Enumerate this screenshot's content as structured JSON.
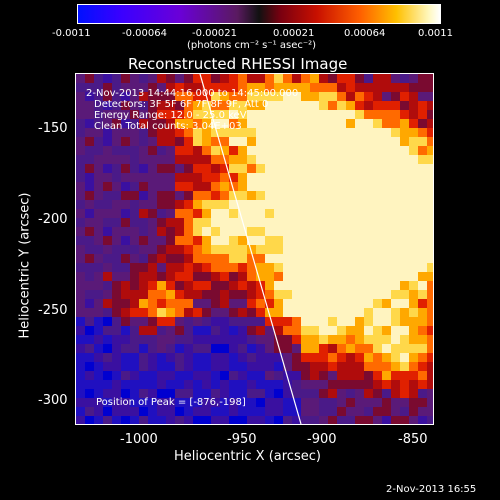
{
  "colorbar": {
    "ticks": [
      "-0.0011",
      "-0.00064",
      "-0.00021",
      "0.00021",
      "0.00064",
      "0.0011"
    ],
    "units": "(photons cm⁻² s⁻¹ asec⁻²)"
  },
  "plot": {
    "title": "Reconstructed RHESSI Image",
    "info": {
      "time_range": "2-Nov-2013 14:44:16.000 to 14:45:00.000",
      "detectors": "Detectors: 3F 5F 6F 7F 8F 9F, Att 0",
      "energy": "Energy Range: 12.0 - 25.0 keV",
      "clean": "Clean     Total counts: 3.04E+03"
    },
    "peak": "Position of Peak = [-876,-198]",
    "x_axis": {
      "label": "Heliocentric X (arcsec)",
      "ticks": [
        "-1000",
        "-950",
        "-900",
        "-850"
      ]
    },
    "y_axis": {
      "label": "Heliocentric Y (arcsec)",
      "ticks": [
        "-150",
        "-200",
        "-250",
        "-300"
      ]
    }
  },
  "footer": {
    "timestamp": "2-Nov-2013 16:55"
  }
}
